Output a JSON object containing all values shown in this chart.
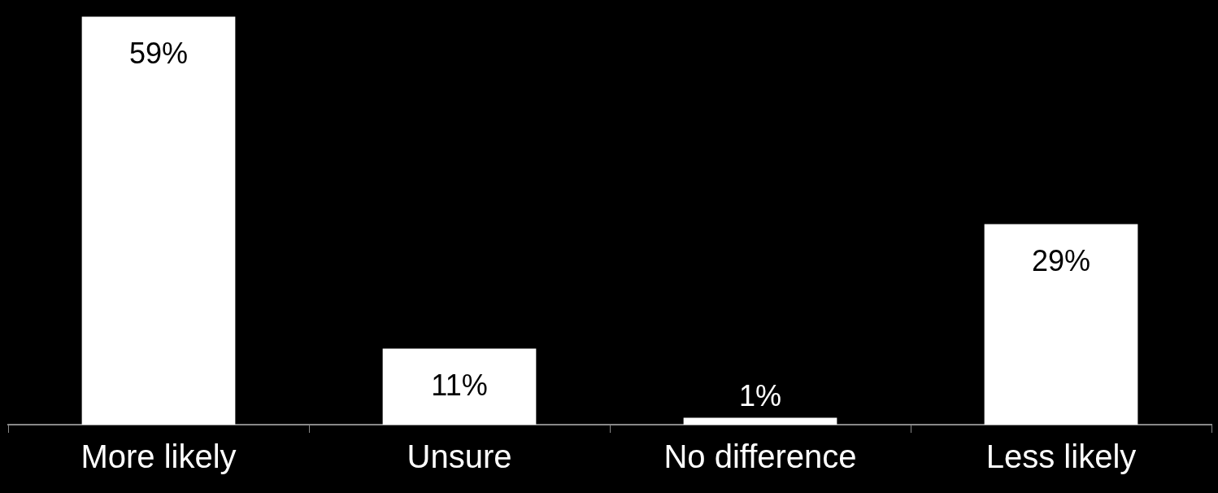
{
  "chart_data": {
    "type": "bar",
    "categories": [
      "More likely",
      "Unsure",
      "No difference",
      "Less likely"
    ],
    "values": [
      59,
      11,
      1,
      29
    ],
    "value_labels": [
      "59%",
      "11%",
      "1%",
      "29%"
    ],
    "color": "#ffffff",
    "grid": false,
    "legend": false
  }
}
